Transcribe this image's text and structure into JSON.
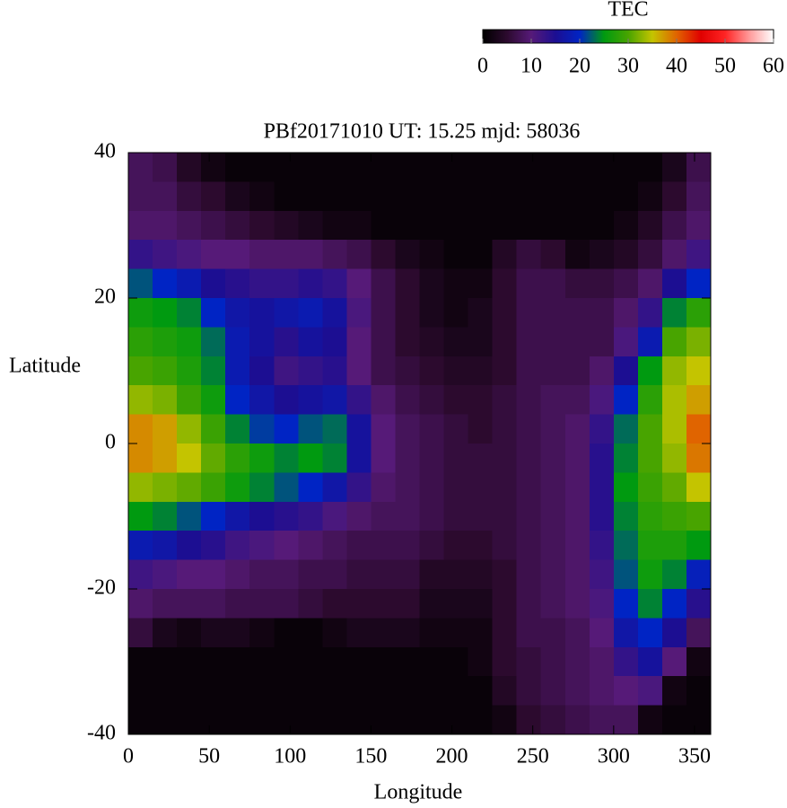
{
  "chart_data": {
    "type": "heatmap",
    "title": "PBf20171010  UT: 15.25  mjd: 58036",
    "xlabel": "Longitude",
    "ylabel": "Latitude",
    "x": [
      7.5,
      22.5,
      37.5,
      52.5,
      67.5,
      82.5,
      97.5,
      112.5,
      127.5,
      142.5,
      157.5,
      172.5,
      187.5,
      202.5,
      217.5,
      232.5,
      247.5,
      262.5,
      277.5,
      292.5,
      307.5,
      322.5,
      337.5,
      352.5
    ],
    "y": [
      38,
      34,
      30,
      26,
      22,
      18,
      14,
      10,
      6,
      2,
      -2,
      -6,
      -10,
      -14,
      -18,
      -22,
      -26,
      -30,
      -34,
      -38
    ],
    "values": [
      [
        8,
        7,
        4,
        2,
        1,
        1,
        1,
        1,
        1,
        1,
        1,
        1,
        1,
        1,
        1,
        1,
        1,
        1,
        1,
        1,
        1,
        1,
        3,
        7
      ],
      [
        8,
        8,
        6,
        5,
        3,
        2,
        1,
        1,
        1,
        1,
        1,
        1,
        1,
        1,
        1,
        1,
        1,
        1,
        1,
        1,
        1,
        2,
        5,
        8
      ],
      [
        9,
        9,
        8,
        7,
        6,
        5,
        4,
        3,
        2,
        2,
        1,
        1,
        1,
        1,
        1,
        1,
        1,
        1,
        1,
        1,
        2,
        4,
        7,
        9
      ],
      [
        13,
        12,
        11,
        10,
        10,
        9,
        9,
        9,
        8,
        7,
        5,
        3,
        2,
        1,
        1,
        4,
        6,
        5,
        2,
        3,
        4,
        6,
        9,
        12
      ],
      [
        22,
        20,
        18,
        15,
        14,
        13,
        13,
        14,
        13,
        10,
        7,
        5,
        3,
        2,
        2,
        5,
        7,
        7,
        6,
        6,
        7,
        9,
        15,
        20
      ],
      [
        26,
        25,
        24,
        20,
        17,
        16,
        17,
        18,
        16,
        11,
        7,
        5,
        3,
        2,
        3,
        5,
        7,
        7,
        7,
        7,
        9,
        13,
        24,
        28
      ],
      [
        28,
        27,
        26,
        23,
        18,
        16,
        14,
        16,
        15,
        10,
        7,
        5,
        4,
        3,
        3,
        5,
        7,
        7,
        7,
        7,
        11,
        18,
        30,
        32
      ],
      [
        30,
        29,
        27,
        24,
        18,
        15,
        12,
        13,
        14,
        10,
        7,
        6,
        5,
        4,
        4,
        5,
        7,
        7,
        7,
        9,
        15,
        25,
        33,
        35
      ],
      [
        33,
        32,
        29,
        26,
        20,
        17,
        15,
        16,
        17,
        13,
        9,
        7,
        6,
        5,
        5,
        6,
        7,
        8,
        8,
        11,
        20,
        28,
        34,
        37
      ],
      [
        38,
        37,
        33,
        29,
        24,
        21,
        20,
        22,
        23,
        16,
        10,
        8,
        7,
        6,
        5,
        6,
        7,
        8,
        9,
        13,
        23,
        30,
        34,
        40
      ],
      [
        38,
        37,
        35,
        31,
        28,
        26,
        24,
        25,
        24,
        16,
        10,
        8,
        7,
        6,
        6,
        6,
        7,
        8,
        9,
        14,
        24,
        30,
        33,
        39
      ],
      [
        33,
        32,
        31,
        29,
        26,
        24,
        22,
        20,
        17,
        13,
        9,
        8,
        7,
        6,
        6,
        6,
        7,
        8,
        9,
        14,
        25,
        29,
        31,
        35
      ],
      [
        25,
        24,
        22,
        20,
        17,
        15,
        14,
        13,
        11,
        9,
        8,
        8,
        7,
        6,
        6,
        6,
        7,
        8,
        9,
        14,
        24,
        28,
        29,
        30
      ],
      [
        18,
        17,
        15,
        14,
        12,
        11,
        10,
        9,
        8,
        7,
        7,
        7,
        6,
        5,
        5,
        6,
        7,
        8,
        9,
        13,
        23,
        27,
        27,
        25
      ],
      [
        12,
        11,
        10,
        10,
        9,
        8,
        8,
        7,
        7,
        6,
        6,
        6,
        4,
        4,
        4,
        5,
        7,
        8,
        9,
        12,
        22,
        26,
        24,
        19
      ],
      [
        9,
        8,
        8,
        8,
        7,
        7,
        7,
        6,
        5,
        5,
        5,
        5,
        3,
        3,
        3,
        5,
        7,
        8,
        9,
        11,
        20,
        24,
        20,
        14
      ],
      [
        6,
        3,
        2,
        3,
        3,
        2,
        1,
        1,
        2,
        3,
        3,
        3,
        2,
        2,
        2,
        5,
        7,
        7,
        8,
        10,
        17,
        20,
        15,
        8
      ],
      [
        1,
        1,
        1,
        1,
        1,
        1,
        1,
        1,
        1,
        1,
        1,
        1,
        1,
        1,
        2,
        5,
        6,
        7,
        8,
        9,
        13,
        16,
        10,
        2
      ],
      [
        1,
        1,
        1,
        1,
        1,
        1,
        1,
        1,
        1,
        1,
        1,
        1,
        1,
        1,
        1,
        4,
        6,
        7,
        8,
        9,
        10,
        11,
        2,
        1
      ],
      [
        1,
        1,
        1,
        1,
        1,
        1,
        1,
        1,
        1,
        1,
        1,
        1,
        1,
        1,
        1,
        2,
        5,
        6,
        7,
        8,
        8,
        2,
        1,
        1
      ]
    ],
    "xlim": [
      0,
      360
    ],
    "xticks": [
      0,
      50,
      100,
      150,
      200,
      250,
      300,
      350
    ],
    "ylim": [
      -40,
      40
    ],
    "yticks": [
      -40,
      -20,
      0,
      20,
      40
    ],
    "colorscale": [
      [
        0,
        "#000000"
      ],
      [
        5,
        "#2c0a2e"
      ],
      [
        10,
        "#561a78"
      ],
      [
        15,
        "#1c0e92"
      ],
      [
        20,
        "#0024c4"
      ],
      [
        25,
        "#009a10"
      ],
      [
        30,
        "#48a400"
      ],
      [
        35,
        "#c4c400"
      ],
      [
        40,
        "#e06400"
      ],
      [
        45,
        "#e00000"
      ],
      [
        50,
        "#ff2424"
      ],
      [
        55,
        "#ff9a9a"
      ],
      [
        60,
        "#ffffff"
      ]
    ],
    "colorbar": {
      "label": "TEC",
      "lim": [
        0,
        60
      ],
      "ticks": [
        0,
        10,
        20,
        30,
        40,
        50,
        60
      ]
    }
  }
}
